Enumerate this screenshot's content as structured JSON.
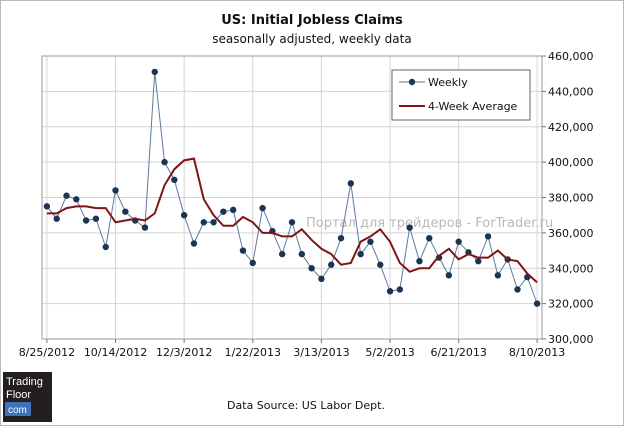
{
  "chart_data": {
    "type": "line",
    "title": "US: Initial Jobless Claims",
    "subtitle": "seasonally adjusted, weekly data",
    "source": "Data Source: US Labor Dept.",
    "ylim": [
      300000,
      460000
    ],
    "y_ticks": [
      "300,000",
      "320,000",
      "340,000",
      "360,000",
      "380,000",
      "400,000",
      "420,000",
      "440,000",
      "460,000"
    ],
    "x_tick_labels": [
      "8/25/2012",
      "10/14/2012",
      "12/3/2012",
      "1/22/2013",
      "3/13/2013",
      "5/2/2013",
      "6/21/2013",
      "8/10/2013"
    ],
    "x_tick_weeks": [
      0,
      7,
      14,
      21,
      28,
      35,
      42,
      50
    ],
    "grid": true,
    "legend_position": "top-right",
    "series": [
      {
        "name": "Weekly",
        "color": "#5c7aa0",
        "marker_color": "#1c3553",
        "values": [
          375000,
          368000,
          381000,
          379000,
          367000,
          368000,
          352000,
          384000,
          372000,
          367000,
          363000,
          451000,
          400000,
          390000,
          370000,
          354000,
          366000,
          366000,
          372000,
          373000,
          350000,
          343000,
          374000,
          361000,
          348000,
          366000,
          348000,
          340000,
          334000,
          342000,
          357000,
          388000,
          348000,
          355000,
          342000,
          327000,
          328000,
          363000,
          344000,
          357000,
          346000,
          336000,
          355000,
          349000,
          344000,
          358000,
          336000,
          345000,
          328000,
          335000,
          320000
        ]
      },
      {
        "name": "4-Week Average",
        "color": "#7f1515",
        "values": [
          371000,
          371000,
          374000,
          375000,
          375000,
          374000,
          374000,
          366000,
          367000,
          368000,
          367000,
          371000,
          387000,
          396000,
          401000,
          402000,
          379000,
          370000,
          364000,
          364000,
          369000,
          366000,
          360000,
          360000,
          358000,
          358000,
          362000,
          356000,
          351000,
          348000,
          342000,
          343000,
          355000,
          358000,
          362000,
          355000,
          343000,
          338000,
          340000,
          340000,
          347000,
          351000,
          345000,
          348000,
          346000,
          346000,
          350000,
          345000,
          344000,
          337000,
          332000
        ]
      }
    ]
  },
  "brand": {
    "line1": "Trading",
    "line2": "Floor",
    "line3": "com",
    "watermark": "Портал для трейдеров - ForTrader.ru"
  }
}
